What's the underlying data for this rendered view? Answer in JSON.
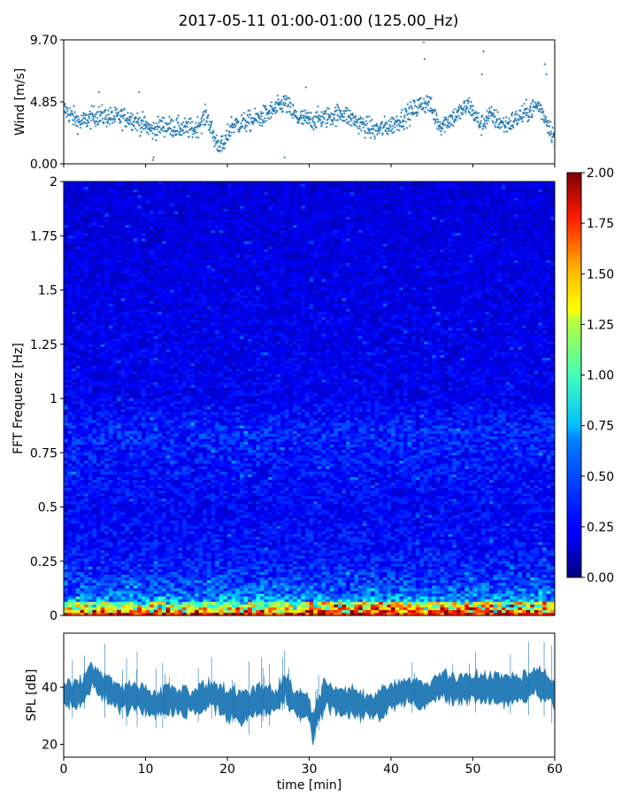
{
  "figure_title": "2017-05-11 01:00-01:00 (125.00_Hz)",
  "chart_data": [
    {
      "type": "scatter",
      "panel": "wind",
      "ylabel": "Wind [m/s]",
      "xlim": [
        0,
        60
      ],
      "ylim": [
        0,
        9.7
      ],
      "yticks": [
        0.0,
        4.85,
        9.7
      ],
      "ytick_labels": [
        "0.00",
        "4.85",
        "9.70"
      ],
      "color": "#1f77b4",
      "trend": {
        "x": [
          0,
          2,
          4,
          6,
          8,
          10,
          10.8,
          12,
          14,
          16,
          17.5,
          18.5,
          19.5,
          20.5,
          22,
          24,
          26,
          27,
          28.5,
          30,
          32,
          34,
          36,
          38,
          40,
          42,
          43.5,
          44.5,
          46,
          48,
          49.5,
          51,
          52,
          54,
          56,
          58,
          59,
          60
        ],
        "y": [
          4.3,
          3.2,
          3.8,
          3.6,
          3.6,
          3.0,
          2.6,
          3.0,
          2.8,
          2.7,
          3.8,
          1.8,
          1.3,
          3.0,
          3.2,
          3.6,
          4.3,
          4.8,
          3.6,
          3.4,
          3.6,
          4.0,
          3.2,
          2.6,
          3.0,
          3.8,
          4.6,
          4.8,
          3.0,
          3.8,
          4.6,
          3.0,
          3.8,
          3.0,
          3.8,
          4.6,
          3.4,
          2.0
        ]
      },
      "outliers": [
        {
          "x": 44.0,
          "y": 9.5
        },
        {
          "x": 44.1,
          "y": 8.2
        },
        {
          "x": 51.3,
          "y": 8.8
        },
        {
          "x": 51.1,
          "y": 7.0
        },
        {
          "x": 58.8,
          "y": 7.8
        },
        {
          "x": 59.0,
          "y": 7.0
        },
        {
          "x": 11.0,
          "y": 0.5
        },
        {
          "x": 10.9,
          "y": 0.3
        },
        {
          "x": 27.0,
          "y": 0.5
        },
        {
          "x": 29.6,
          "y": 6.0
        },
        {
          "x": 4.3,
          "y": 5.6
        },
        {
          "x": 9.2,
          "y": 5.6
        }
      ]
    },
    {
      "type": "heatmap",
      "panel": "spectrogram",
      "ylabel": "FFT Frequenz [Hz]",
      "xlim": [
        0,
        60
      ],
      "ylim": [
        0,
        2
      ],
      "yticks": [
        0,
        0.25,
        0.5,
        0.75,
        1,
        1.25,
        1.5,
        1.75,
        2
      ],
      "ytick_labels": [
        "0",
        "0.25",
        "0.5",
        "0.75",
        "1",
        "1.25",
        "1.5",
        "1.75",
        "2"
      ],
      "colormap": "jet",
      "clim": [
        0.0,
        2.0
      ],
      "colorbar_ticks": [
        "0.00",
        "0.25",
        "0.50",
        "0.75",
        "1.00",
        "1.25",
        "1.50",
        "1.75",
        "2.00"
      ],
      "typical_level": {
        "frequency_hz": [
          0.0,
          0.02,
          0.05,
          0.1,
          0.2,
          0.3,
          0.5,
          0.8,
          0.85,
          0.9,
          1.0,
          1.5,
          2.0
        ],
        "value": [
          1.6,
          1.0,
          0.7,
          0.45,
          0.32,
          0.27,
          0.24,
          0.3,
          0.32,
          0.28,
          0.22,
          0.2,
          0.18
        ]
      }
    },
    {
      "type": "area",
      "panel": "spl",
      "ylabel": "SPL [dB]",
      "xlabel": "time [min]",
      "xlim": [
        0,
        60
      ],
      "ylim": [
        15.5,
        59
      ],
      "yticks": [
        20,
        40
      ],
      "xticks": [
        0,
        10,
        20,
        30,
        40,
        50,
        60
      ],
      "color": "#1f77b4",
      "trend": {
        "x": [
          0,
          2,
          3.5,
          5,
          7,
          9,
          11,
          13,
          15,
          17,
          18,
          20,
          22,
          24,
          26,
          27,
          28,
          30,
          30.5,
          31,
          32,
          34,
          36,
          38,
          40,
          42,
          44,
          46,
          48,
          50,
          52,
          54,
          56,
          58,
          60
        ],
        "y": [
          37,
          38,
          44,
          40,
          36,
          37,
          34,
          36,
          35,
          36,
          38,
          34,
          33,
          36,
          35,
          41,
          35,
          33,
          25,
          32,
          38,
          35,
          34,
          33,
          37,
          39,
          37,
          41,
          39,
          40,
          40,
          39,
          40,
          42,
          38
        ]
      }
    }
  ]
}
